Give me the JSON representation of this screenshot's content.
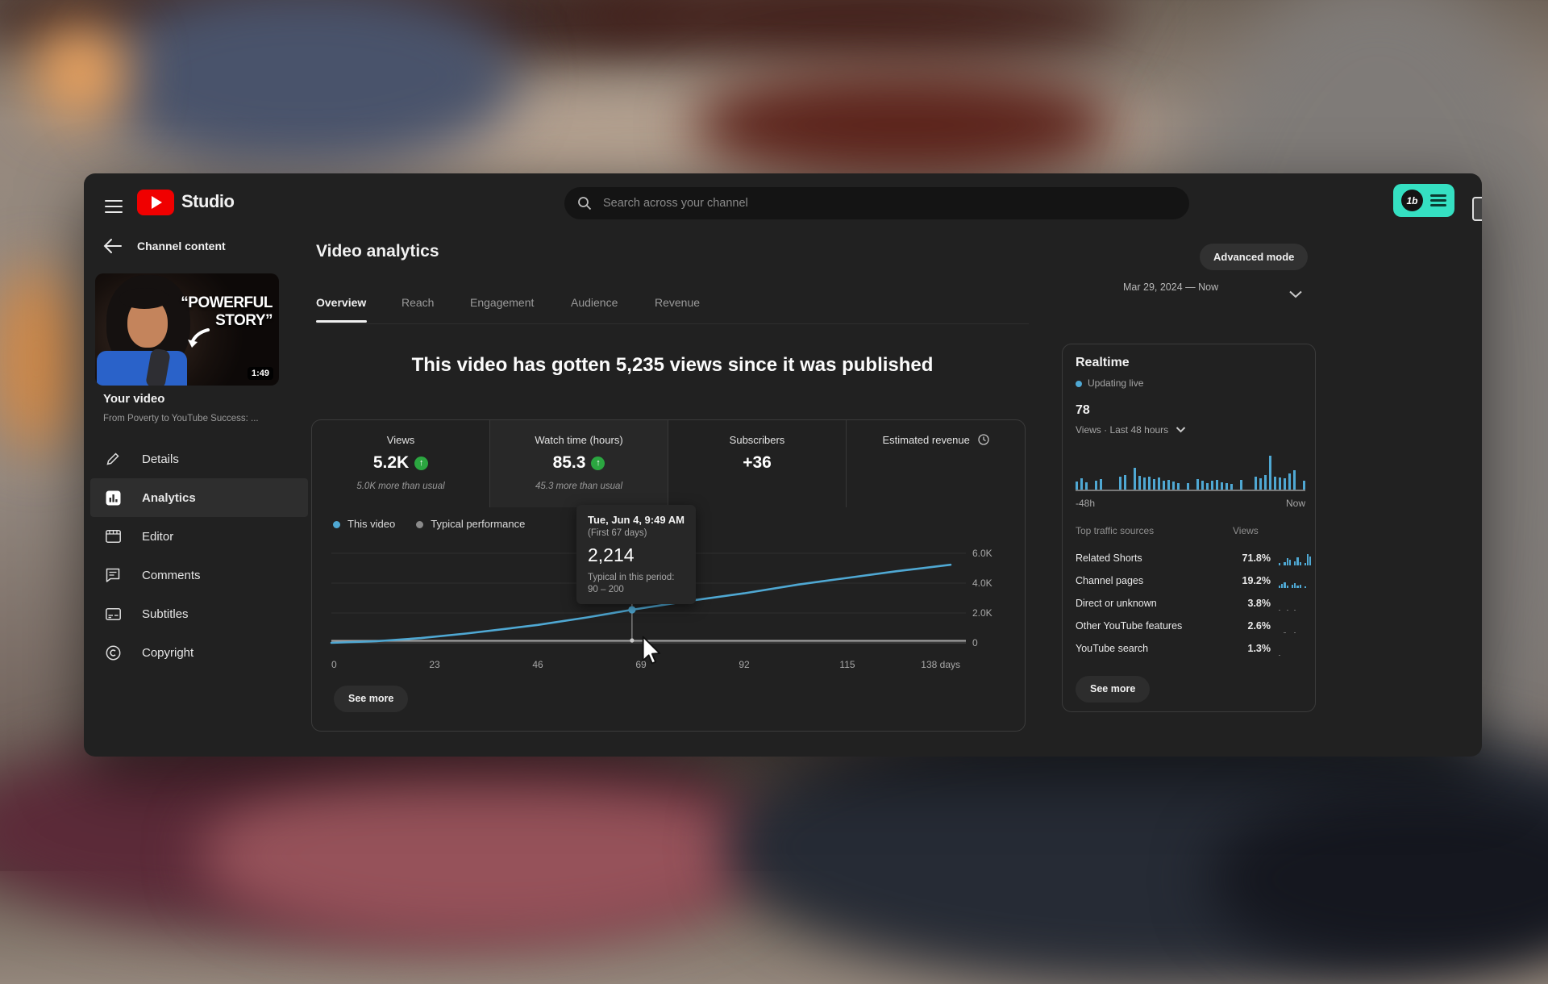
{
  "topbar": {
    "logo_text": "Studio",
    "search_placeholder": "Search across your channel",
    "extension_label": "1b"
  },
  "sidebar": {
    "back_header": "Channel content",
    "thumbnail": {
      "line1": "“POWERFUL",
      "line2": "STORY”",
      "duration": "1:49"
    },
    "your_video_label": "Your video",
    "video_title": "From Poverty to YouTube Success: ...",
    "items": [
      {
        "label": "Details",
        "active": false
      },
      {
        "label": "Analytics",
        "active": true
      },
      {
        "label": "Editor",
        "active": false
      },
      {
        "label": "Comments",
        "active": false
      },
      {
        "label": "Subtitles",
        "active": false
      },
      {
        "label": "Copyright",
        "active": false
      }
    ]
  },
  "header": {
    "title": "Video analytics",
    "advanced_mode": "Advanced mode",
    "date_range": "Mar 29, 2024 — Now",
    "tabs": [
      "Overview",
      "Reach",
      "Engagement",
      "Audience",
      "Revenue"
    ],
    "active_tab": "Overview"
  },
  "headline": "This video has gotten 5,235 views since it was published",
  "metrics": [
    {
      "label": "Views",
      "value": "5.2K",
      "trend": "up",
      "sub": "5.0K more than usual"
    },
    {
      "label": "Watch time (hours)",
      "value": "85.3",
      "trend": "up",
      "sub": "45.3 more than usual",
      "highlighted": true
    },
    {
      "label": "Subscribers",
      "value": "+36",
      "trend": null,
      "sub": ""
    },
    {
      "label": "Estimated revenue",
      "value": "",
      "trend": null,
      "sub": "",
      "icon": "clock"
    }
  ],
  "main_see_more": "See more",
  "chart_data": {
    "main": {
      "type": "line",
      "legend": [
        "This video",
        "Typical performance"
      ],
      "y_ticks": [
        "0",
        "2.0K",
        "4.0K",
        "6.0K"
      ],
      "ylim": [
        0,
        6000
      ],
      "xlim_days": [
        0,
        138
      ],
      "x_ticks": [
        {
          "d": 0,
          "label": "0"
        },
        {
          "d": 23,
          "label": "23"
        },
        {
          "d": 46,
          "label": "46"
        },
        {
          "d": 69,
          "label": "69"
        },
        {
          "d": 92,
          "label": "92"
        },
        {
          "d": 115,
          "label": "115"
        },
        {
          "d": 138,
          "label": "138 days"
        }
      ],
      "series": [
        {
          "name": "This video",
          "color": "#4fa8d3",
          "points": [
            [
              0,
              0
            ],
            [
              10,
              110
            ],
            [
              20,
              320
            ],
            [
              30,
              620
            ],
            [
              40,
              980
            ],
            [
              46,
              1200
            ],
            [
              57,
              1700
            ],
            [
              67,
              2214
            ],
            [
              80,
              2820
            ],
            [
              92,
              3320
            ],
            [
              104,
              3900
            ],
            [
              115,
              4350
            ],
            [
              126,
              4800
            ],
            [
              138,
              5235
            ]
          ]
        },
        {
          "name": "Typical performance",
          "color": "#9e9e9e",
          "points": [
            [
              0,
              90
            ],
            [
              138,
              200
            ]
          ]
        }
      ],
      "hover": {
        "day": 67,
        "value": 2214
      },
      "tooltip": {
        "date": "Tue, Jun 4, 9:49 AM",
        "period": "(First 67 days)",
        "value": "2,214",
        "typical_label": "Typical in this period:",
        "typical_range": "90 – 200"
      }
    },
    "realtime": {
      "type": "bar",
      "x_left_label": "-48h",
      "x_right_label": "Now",
      "values": [
        0.25,
        0.33,
        0.22,
        0,
        0.27,
        0.3,
        0,
        0,
        0,
        0.38,
        0.42,
        0,
        0.65,
        0.4,
        0.36,
        0.38,
        0.3,
        0.35,
        0.26,
        0.28,
        0.24,
        0.2,
        0,
        0.18,
        0,
        0.3,
        0.26,
        0.18,
        0.26,
        0.28,
        0.22,
        0.2,
        0.16,
        0,
        0.28,
        0,
        0,
        0.38,
        0.33,
        0.42,
        1.0,
        0.38,
        0.36,
        0.33,
        0.48,
        0.56,
        0,
        0.26
      ]
    }
  },
  "realtime": {
    "title": "Realtime",
    "updating": "Updating live",
    "count": "78",
    "count_caption": "Views · Last 48 hours",
    "traffic": {
      "col_source": "Top traffic sources",
      "col_views": "Views",
      "rows": [
        {
          "name": "Related Shorts",
          "pct": "71.8%",
          "spark_color": "#4fa8d3",
          "spark": [
            3,
            0,
            4,
            9,
            7,
            0,
            5,
            10,
            4,
            0,
            3,
            14,
            11
          ]
        },
        {
          "name": "Channel pages",
          "pct": "19.2%",
          "spark_color": "#4fa8d3",
          "spark": [
            3,
            5,
            7,
            3,
            0,
            4,
            6,
            3,
            4,
            0,
            2
          ]
        },
        {
          "name": "Direct or unknown",
          "pct": "3.8%",
          "spark_color": "#6e6e6e",
          "spark": [
            1.5,
            0,
            0,
            1.5,
            0,
            0,
            1.5
          ]
        },
        {
          "name": "Other YouTube features",
          "pct": "2.6%",
          "spark_color": "#6e6e6e",
          "spark": [
            0,
            0,
            1.5,
            0,
            0,
            0,
            1.5
          ]
        },
        {
          "name": "YouTube search",
          "pct": "1.3%",
          "spark_color": "#6e6e6e",
          "spark": [
            1.5,
            0,
            0,
            0,
            0,
            0,
            0
          ]
        }
      ]
    },
    "see_more": "See more"
  },
  "colors": {
    "accent_blue": "#4fa8d3",
    "positive_green": "#2ba640",
    "extension_teal": "#35e0c2",
    "youtube_red": "#f00000"
  }
}
